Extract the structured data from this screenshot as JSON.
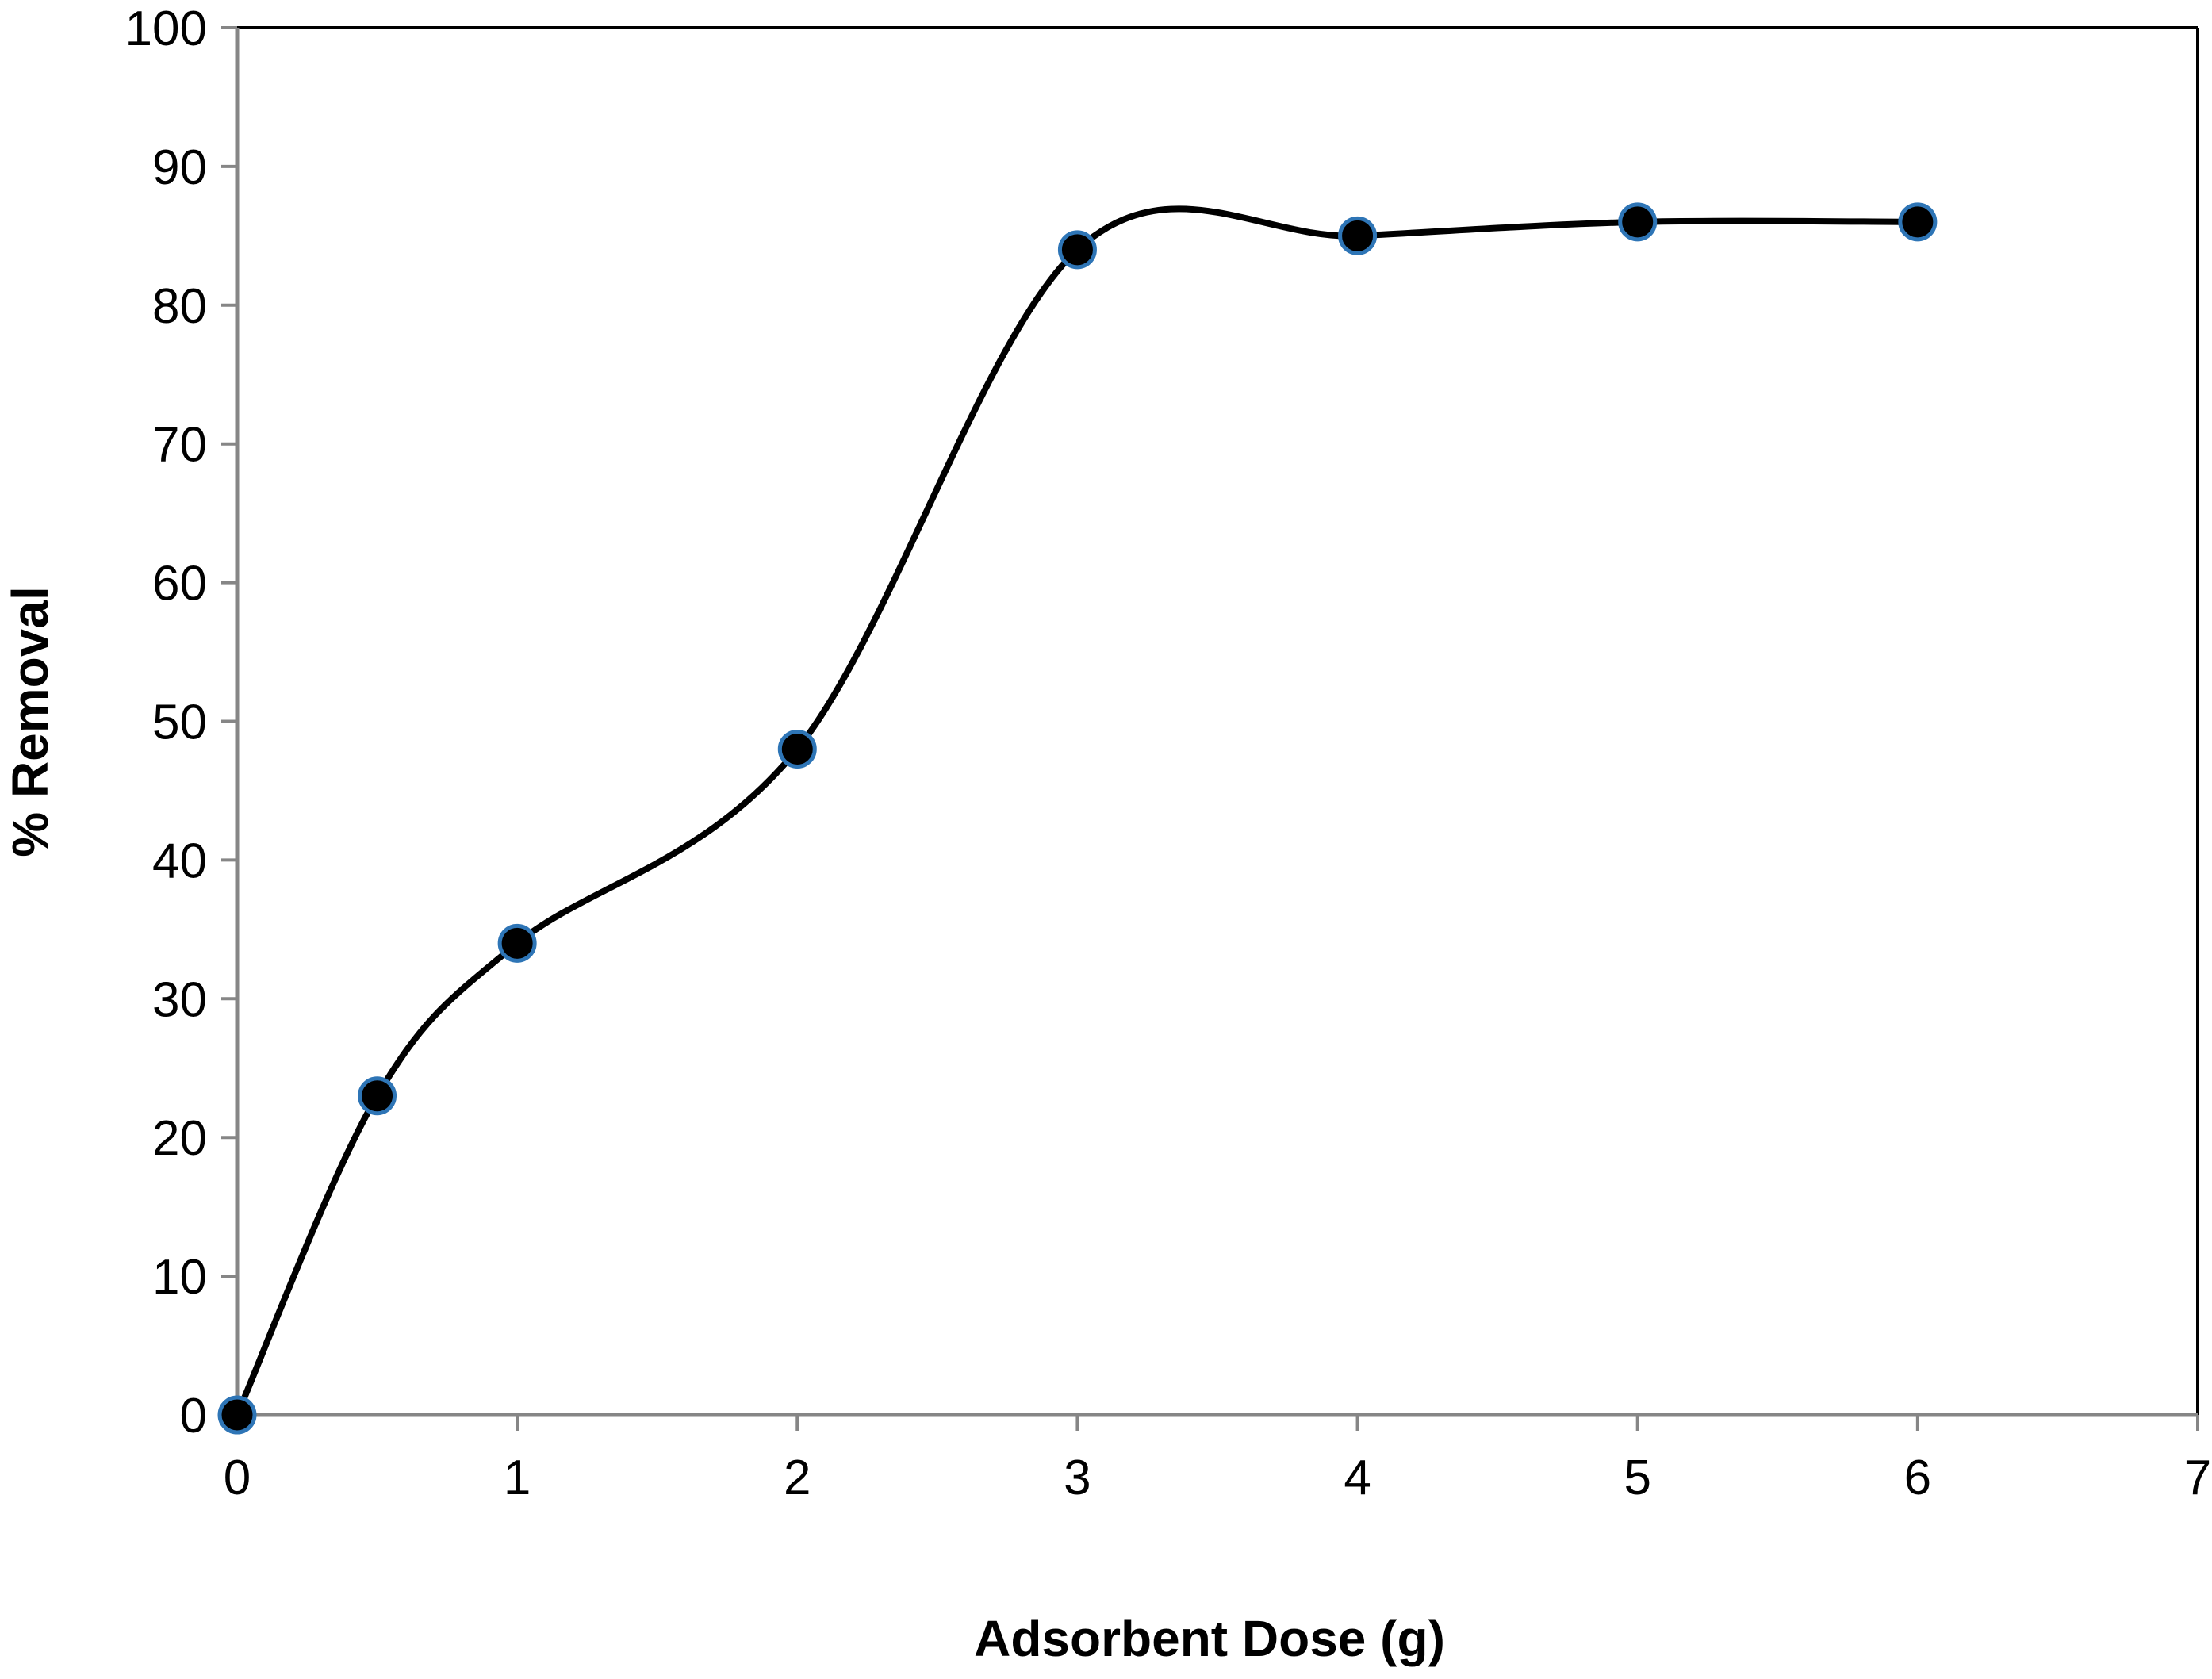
{
  "chart_data": {
    "type": "scatter",
    "title": "",
    "xlabel": "Adsorbent Dose (g)",
    "ylabel": "% Removal",
    "xlim": [
      0,
      7
    ],
    "ylim": [
      0,
      100
    ],
    "xticks": [
      0,
      1,
      2,
      3,
      4,
      5,
      6,
      7
    ],
    "yticks": [
      0,
      10,
      20,
      30,
      40,
      50,
      60,
      70,
      80,
      90,
      100
    ],
    "grid": false,
    "legend": "none",
    "line_style": "smoothed",
    "series": [
      {
        "x": [
          0,
          0.5,
          1,
          2,
          3,
          4,
          5,
          6
        ],
        "y": [
          0,
          23,
          34,
          48,
          84,
          85,
          86,
          86
        ]
      }
    ],
    "colors": {
      "line": "#000000",
      "marker_fill": "#000000",
      "marker_edge": "#2E75B6",
      "axis": "#868686",
      "frame": "#000000"
    }
  }
}
